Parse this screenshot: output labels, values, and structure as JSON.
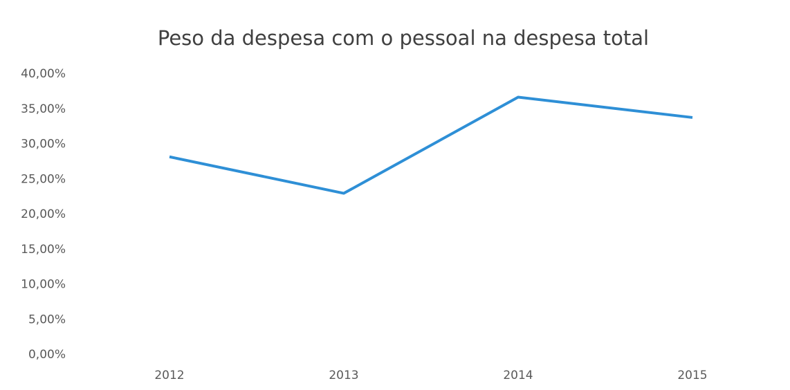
{
  "chart_data": {
    "type": "line",
    "title": "Peso da despesa com o pessoal na despesa total",
    "categories": [
      "2012",
      "2013",
      "2014",
      "2015"
    ],
    "values": [
      28.2,
      23.0,
      36.7,
      33.8
    ],
    "color": "#2e8fd6",
    "ylim": [
      0,
      40
    ],
    "yticks": [
      {
        "value": 0,
        "label": "0,00%"
      },
      {
        "value": 5,
        "label": "5,00%"
      },
      {
        "value": 10,
        "label": "10,00%"
      },
      {
        "value": 15,
        "label": "15,00%"
      },
      {
        "value": 20,
        "label": "20,00%"
      },
      {
        "value": 25,
        "label": "25,00%"
      },
      {
        "value": 30,
        "label": "30,00%"
      },
      {
        "value": 35,
        "label": "35,00%"
      },
      {
        "value": 40,
        "label": "40,00%"
      }
    ],
    "grid": false
  }
}
